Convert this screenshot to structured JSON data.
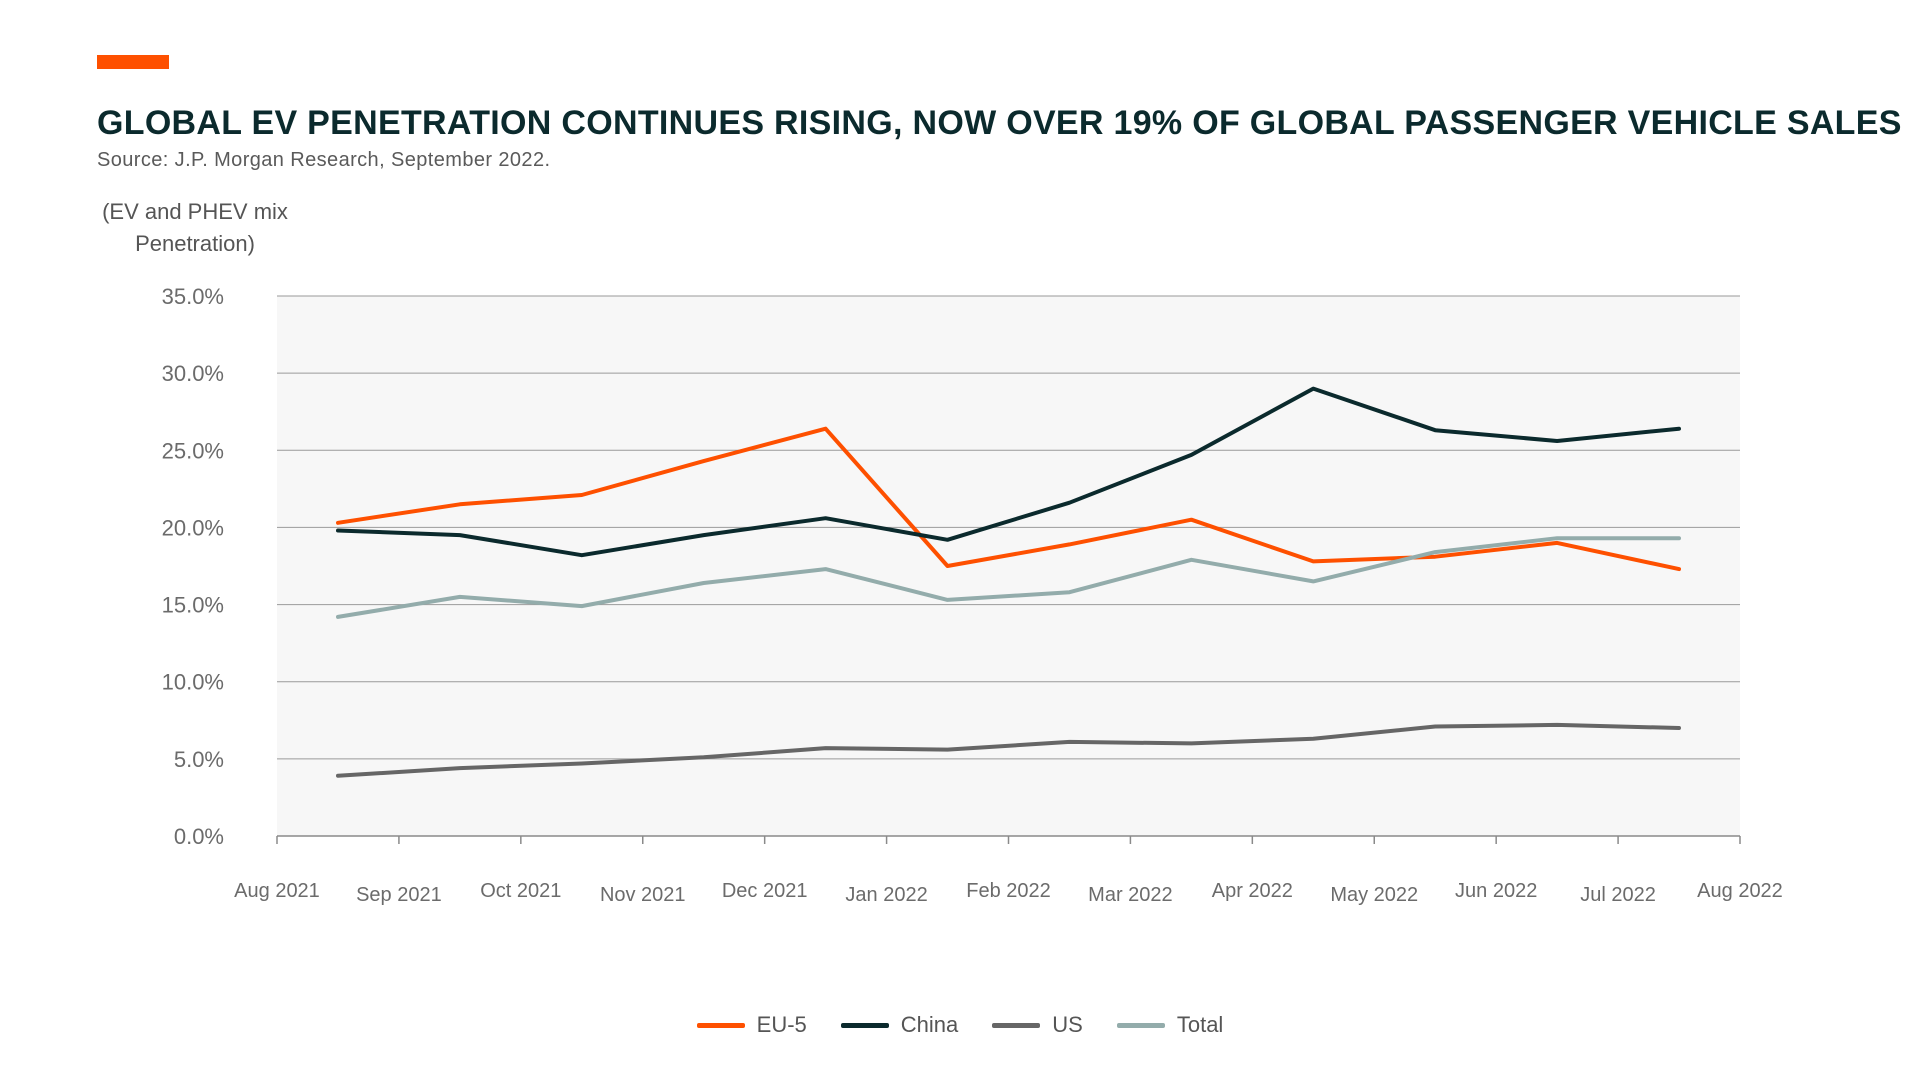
{
  "colors": {
    "accent": "#fe5000",
    "eu5": "#fe5000",
    "china": "#0b2a2d",
    "us": "#666666",
    "total": "#93acab",
    "plot_background": "#f7f7f7",
    "gridline": "#9a9a9a"
  },
  "chart_data": {
    "type": "line",
    "title": "GLOBAL EV PENETRATION CONTINUES RISING, NOW OVER 19% OF GLOBAL PASSENGER VEHICLE SALES",
    "subtitle": "Source: J.P. Morgan Research, September 2022.",
    "ylabel": "(EV and PHEV mix Penetration)",
    "xlabel": "",
    "x_tick_labels": [
      "Aug 2021",
      "Sep 2021",
      "Oct 2021",
      "Nov 2021",
      "Dec 2021",
      "Jan 2022",
      "Feb 2022",
      "Mar 2022",
      "Apr 2022",
      "May 2022",
      "Jun 2022",
      "Jul 2022",
      "Aug 2022"
    ],
    "y_tick_labels": [
      "35.0%",
      "30.0%",
      "25.0%",
      "20.0%",
      "15.0%",
      "10.0%",
      "5.0%",
      "0.0%"
    ],
    "x": [
      "Aug 2021",
      "Sep 2021",
      "Oct 2021",
      "Nov 2021",
      "Dec 2021",
      "Jan 2022",
      "Feb 2022",
      "Mar 2022",
      "Apr 2022",
      "May 2022",
      "Jun 2022",
      "Jul 2022"
    ],
    "ylim": [
      0,
      35
    ],
    "y_unit": "%",
    "grid": true,
    "legend_position": "bottom-center",
    "series": [
      {
        "name": "EU-5",
        "color": "#fe5000",
        "values": [
          20.3,
          21.5,
          22.1,
          24.3,
          26.4,
          17.5,
          18.9,
          20.5,
          17.8,
          18.1,
          19.0,
          17.3
        ]
      },
      {
        "name": "China",
        "color": "#0b2a2d",
        "values": [
          19.8,
          19.5,
          18.2,
          19.5,
          20.6,
          19.2,
          21.6,
          24.7,
          29.0,
          26.3,
          25.6,
          26.4
        ]
      },
      {
        "name": "US",
        "color": "#666666",
        "values": [
          3.9,
          4.4,
          4.7,
          5.1,
          5.7,
          5.6,
          6.1,
          6.0,
          6.3,
          7.1,
          7.2,
          7.0
        ]
      },
      {
        "name": "Total",
        "color": "#93acab",
        "values": [
          14.2,
          15.5,
          14.9,
          16.4,
          17.3,
          15.3,
          15.8,
          17.9,
          16.5,
          18.4,
          19.3,
          19.3
        ]
      }
    ]
  }
}
